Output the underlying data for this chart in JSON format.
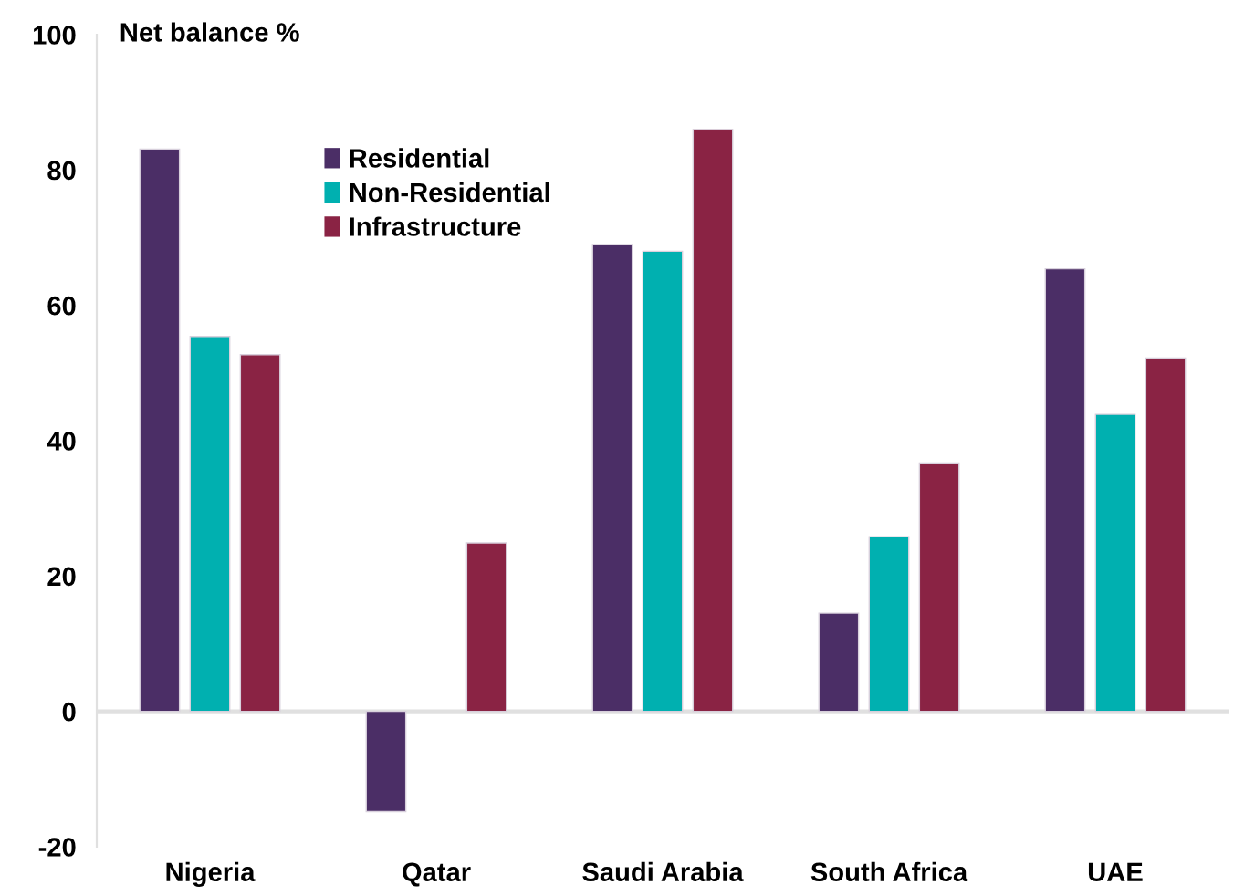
{
  "chart_data": {
    "type": "bar",
    "ylabel": "Net balance %",
    "categories": [
      "Nigeria",
      "Qatar",
      "Saudi Arabia",
      "South Africa",
      "UAE"
    ],
    "series": [
      {
        "name": "Residential",
        "color": "#4b2e66",
        "values": [
          83.1,
          -14.8,
          69.0,
          14.5,
          65.4
        ]
      },
      {
        "name": "Non-Residential",
        "color": "#00b0b0",
        "values": [
          55.4,
          null,
          68.0,
          25.8,
          43.9
        ]
      },
      {
        "name": "Infrastructure",
        "color": "#8a2344",
        "values": [
          52.7,
          24.9,
          86.0,
          36.7,
          52.2
        ]
      }
    ],
    "ylim": [
      -20,
      100
    ],
    "yticks": [
      -20,
      0,
      20,
      40,
      60,
      80,
      100
    ],
    "grid": false,
    "ref_lines": [
      {
        "axis": "y",
        "value": 0,
        "color": "#e0e0e0"
      }
    ],
    "legend": "top left"
  }
}
